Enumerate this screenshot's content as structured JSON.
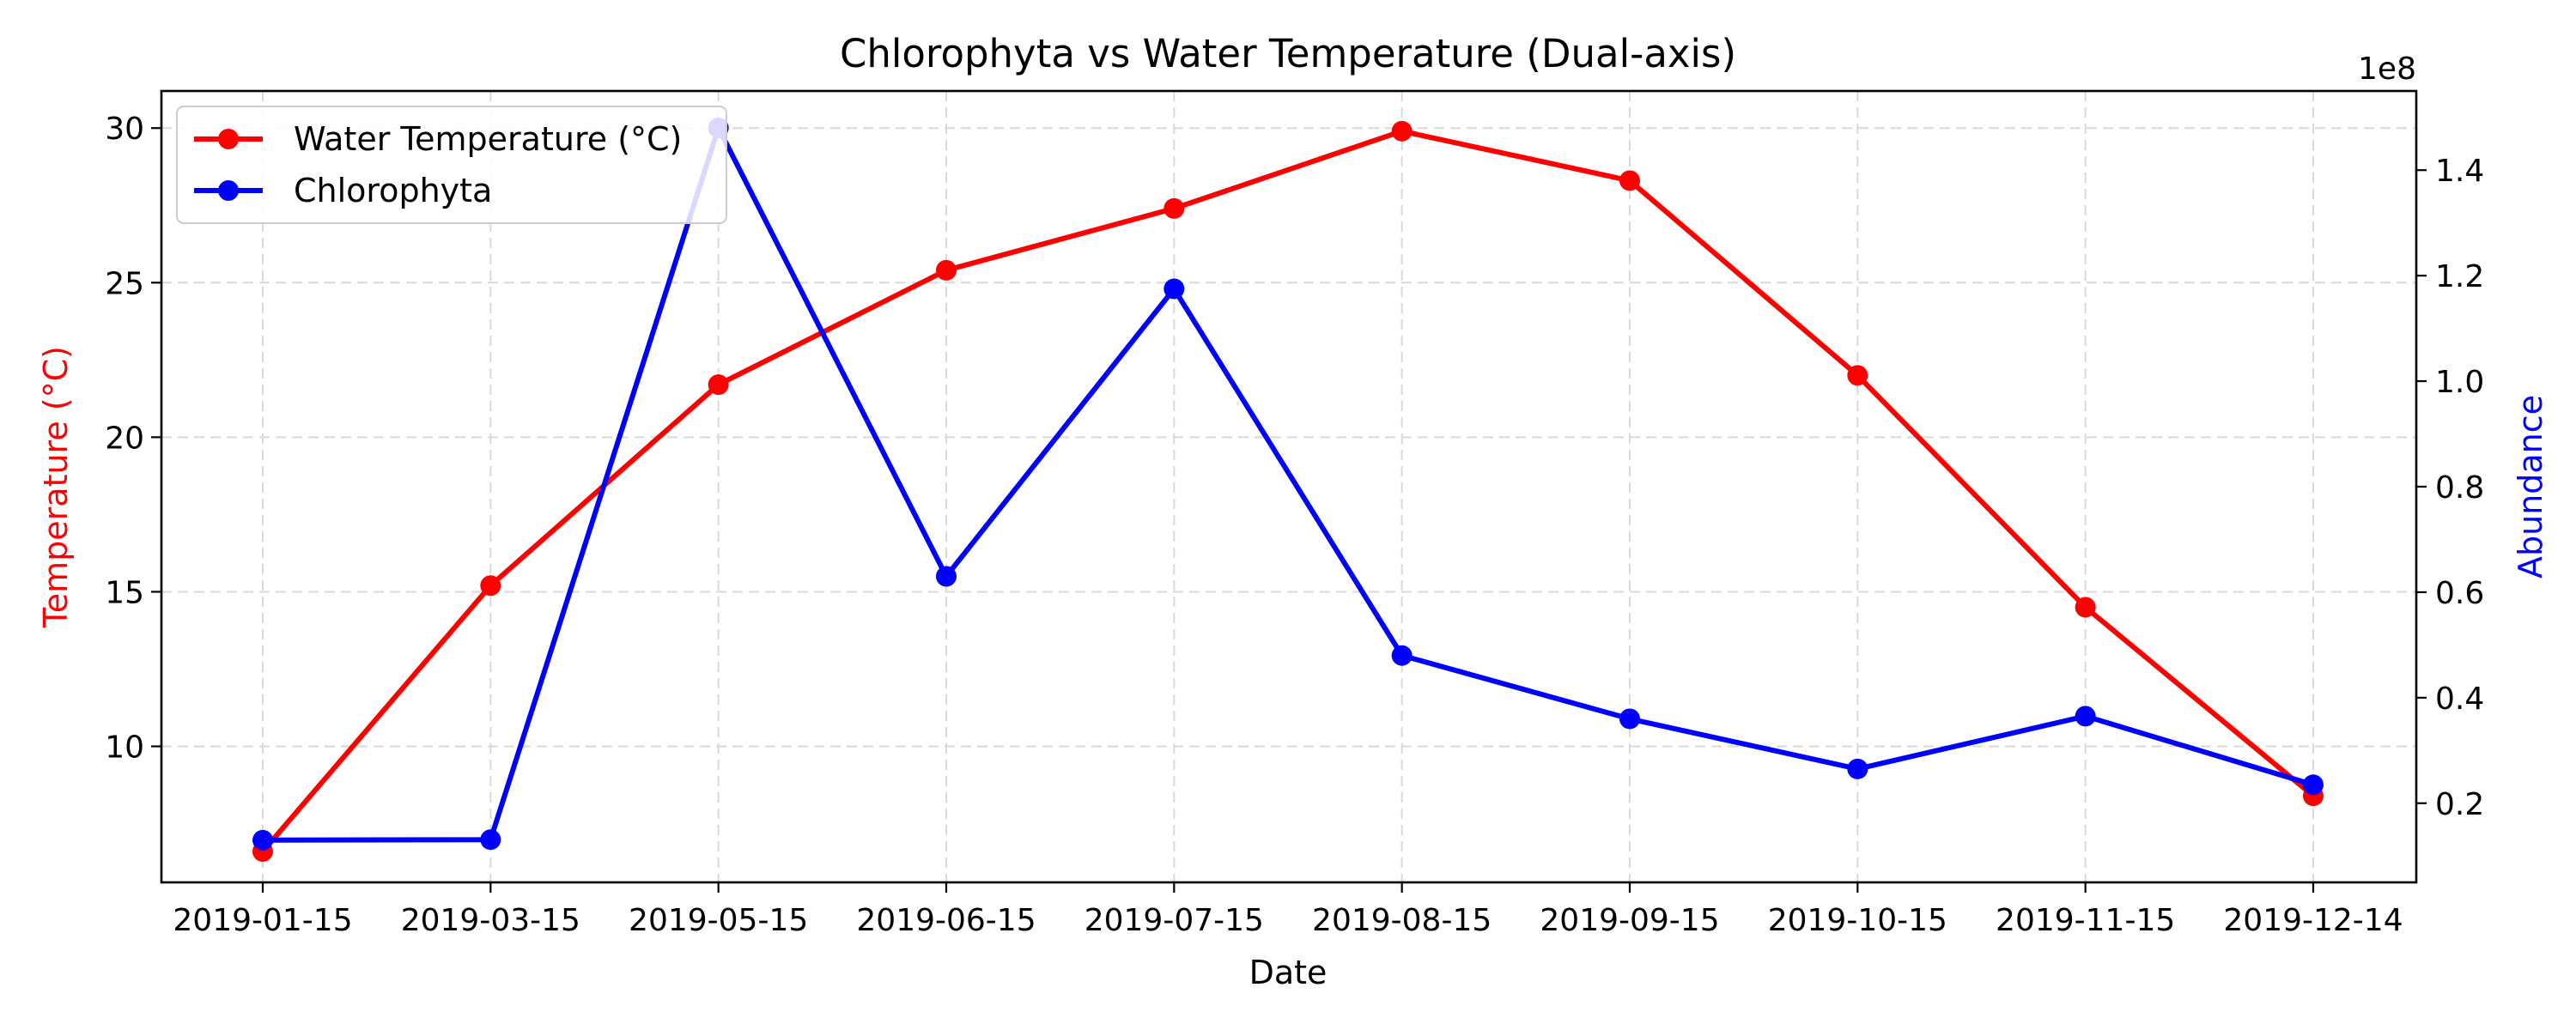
{
  "chart_data": {
    "type": "line",
    "title": "Chlorophyta vs Water Temperature (Dual-axis)",
    "xlabel": "Date",
    "ylabel_left": "Temperature (°C)",
    "ylabel_right": "Abundance",
    "right_axis_multiplier": "1e8",
    "categories": [
      "2019-01-15",
      "2019-03-15",
      "2019-05-15",
      "2019-06-15",
      "2019-07-15",
      "2019-08-15",
      "2019-09-15",
      "2019-10-15",
      "2019-11-15",
      "2019-12-14"
    ],
    "ylim_left": [
      5.6,
      31.2
    ],
    "ylim_right": [
      5000000,
      155000000
    ],
    "yticks_left": [
      10,
      15,
      20,
      25,
      30
    ],
    "yticks_right": [
      20000000,
      40000000,
      60000000,
      80000000,
      100000000,
      120000000,
      140000000
    ],
    "yticks_right_labels": [
      "0.2",
      "0.4",
      "0.6",
      "0.8",
      "1.0",
      "1.2",
      "1.4"
    ],
    "grid": true,
    "legend_position": "top-left",
    "series": [
      {
        "name": "Water Temperature (°C)",
        "axis": "left",
        "color": "#ff0000",
        "values": [
          6.6,
          15.2,
          21.7,
          25.4,
          27.4,
          29.9,
          28.3,
          22.0,
          14.5,
          8.4
        ]
      },
      {
        "name": "Chlorophyta",
        "axis": "right",
        "color": "#0000ff",
        "values": [
          13000000,
          13100000,
          148000000,
          63000000,
          117500000,
          48000000,
          36000000,
          26500000,
          36500000,
          23500000
        ]
      }
    ]
  }
}
